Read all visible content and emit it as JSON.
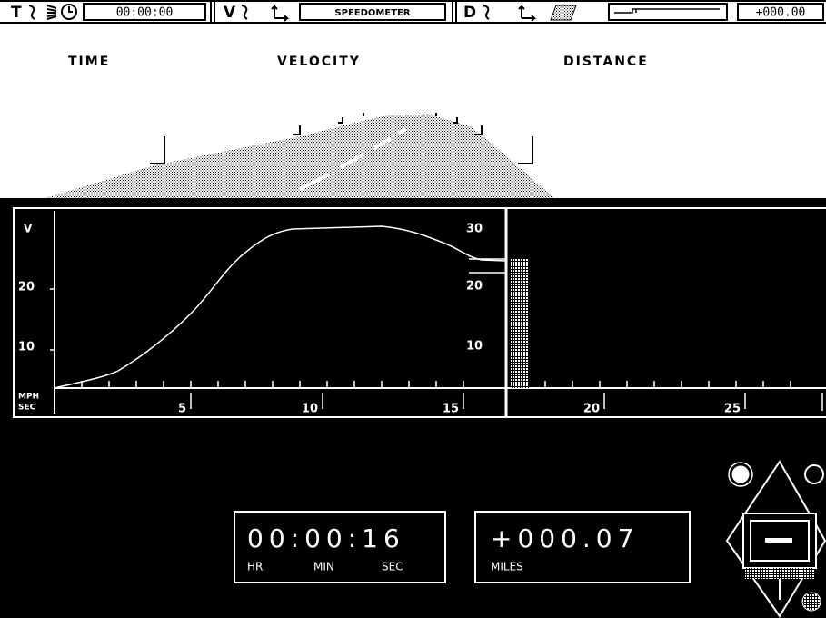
{
  "top_bar": {
    "time_label": "T",
    "time_display": "00:00:00",
    "velocity_label": "V",
    "velocity_mode": "SPEEDOMETER",
    "distance_label": "D",
    "distance_display": "+000.00"
  },
  "scene": {
    "labels": [
      "TIME",
      "VELOCITY",
      "DISTANCE"
    ]
  },
  "graph": {
    "y_label": "V",
    "left_ticks": [
      "20",
      "10"
    ],
    "units": [
      "MPH",
      "SEC"
    ],
    "right_ticks": [
      "30",
      "20",
      "10"
    ],
    "x_ticks": [
      "5",
      "10",
      "15",
      "20",
      "25"
    ]
  },
  "readouts": {
    "time": "00:00:16",
    "time_units": [
      "HR",
      "MIN",
      "SEC"
    ],
    "distance": "+000.07",
    "distance_unit": "MILES"
  }
}
